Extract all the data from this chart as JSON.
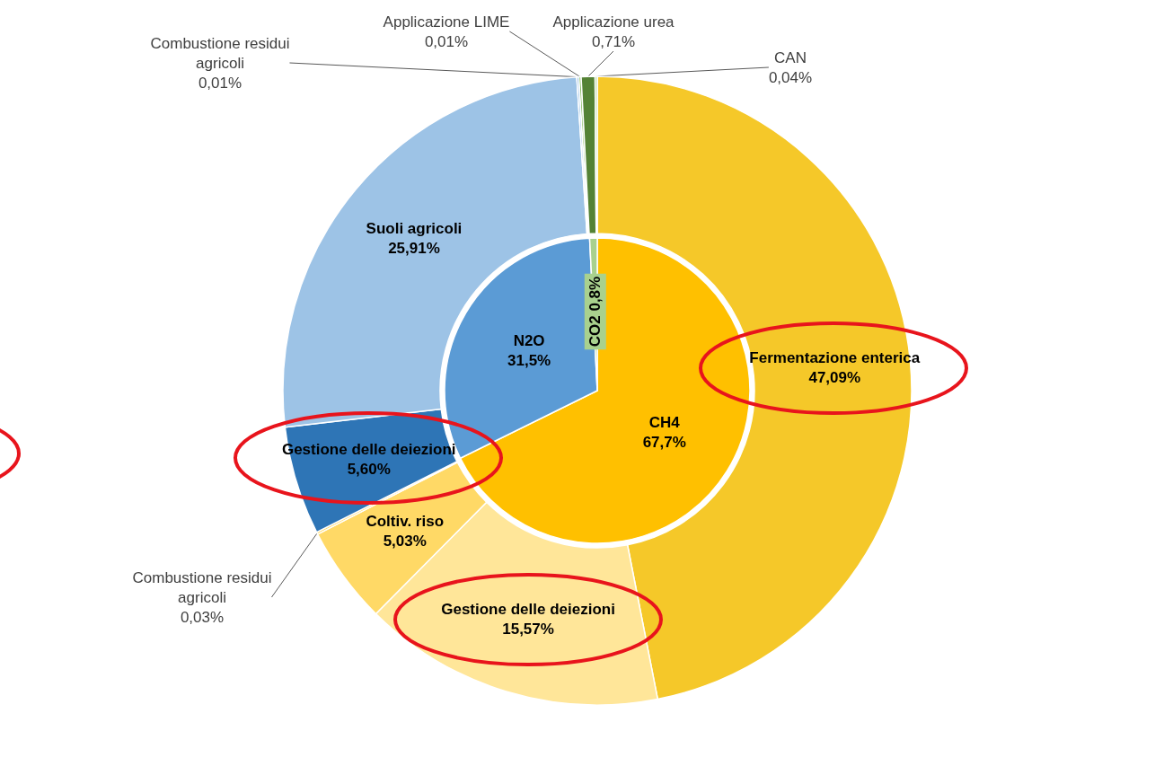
{
  "chart_data": [
    {
      "type": "pie",
      "categories": [
        "CH4",
        "N2O",
        "CO2"
      ],
      "values": [
        67.7,
        31.5,
        0.8
      ],
      "colors": [
        "#ffc000",
        "#5b9bd5",
        "#a9d18e"
      ],
      "value_labels": [
        "67,7%",
        "31,5%",
        "0,8%"
      ]
    },
    {
      "type": "donut",
      "categories": [
        "Fermentazione enterica",
        "Gestione delle deiezioni",
        "Coltiv. riso",
        "Combustione residui agricoli",
        "Gestione delle deiezioni",
        "Suoli agricoli",
        "Combustione residui agricoli",
        "Applicazione LIME",
        "Applicazione urea",
        "CAN"
      ],
      "values": [
        47.09,
        15.57,
        5.03,
        0.03,
        5.6,
        25.91,
        0.01,
        0.01,
        0.71,
        0.04
      ],
      "colors": [
        "#f5c829",
        "#ffe699",
        "#ffd966",
        "#ffd966",
        "#2e75b6",
        "#9dc3e6",
        "#9dc3e6",
        "#70ad47",
        "#548235",
        "#a9d18e"
      ],
      "value_labels": [
        "47,09%",
        "15,57%",
        "5,03%",
        "0,03%",
        "5,60%",
        "25,91%",
        "0,01%",
        "0,01%",
        "0,71%",
        "0,04%"
      ]
    }
  ]
}
